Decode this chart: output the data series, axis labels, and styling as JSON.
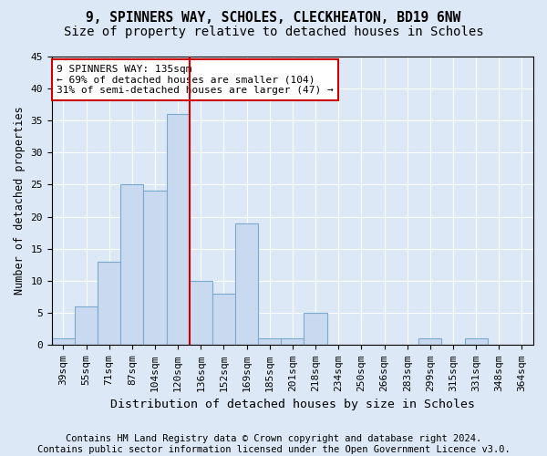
{
  "title1": "9, SPINNERS WAY, SCHOLES, CLECKHEATON, BD19 6NW",
  "title2": "Size of property relative to detached houses in Scholes",
  "xlabel": "Distribution of detached houses by size in Scholes",
  "ylabel": "Number of detached properties",
  "categories": [
    "39sqm",
    "55sqm",
    "71sqm",
    "87sqm",
    "104sqm",
    "120sqm",
    "136sqm",
    "152sqm",
    "169sqm",
    "185sqm",
    "201sqm",
    "218sqm",
    "234sqm",
    "250sqm",
    "266sqm",
    "283sqm",
    "299sqm",
    "315sqm",
    "331sqm",
    "348sqm",
    "364sqm"
  ],
  "values": [
    1,
    6,
    13,
    25,
    24,
    36,
    10,
    8,
    19,
    1,
    1,
    5,
    0,
    0,
    0,
    0,
    1,
    0,
    1,
    0,
    0
  ],
  "bar_color": "#c9d9f0",
  "bar_edge_color": "#7aaad0",
  "vline_color": "#cc0000",
  "vline_x": 5.5,
  "annotation_line1": "9 SPINNERS WAY: 135sqm",
  "annotation_line2": "← 69% of detached houses are smaller (104)",
  "annotation_line3": "31% of semi-detached houses are larger (47) →",
  "annotation_box_edge": "#cc0000",
  "ylim": [
    0,
    45
  ],
  "yticks": [
    0,
    5,
    10,
    15,
    20,
    25,
    30,
    35,
    40,
    45
  ],
  "footer_text": "Contains HM Land Registry data © Crown copyright and database right 2024.\nContains public sector information licensed under the Open Government Licence v3.0.",
  "background_color": "#dce8f5",
  "plot_bg_color": "#dce8f5",
  "title1_fontsize": 10.5,
  "title2_fontsize": 10,
  "xlabel_fontsize": 9.5,
  "ylabel_fontsize": 8.5,
  "footer_fontsize": 7.5,
  "tick_fontsize": 8
}
